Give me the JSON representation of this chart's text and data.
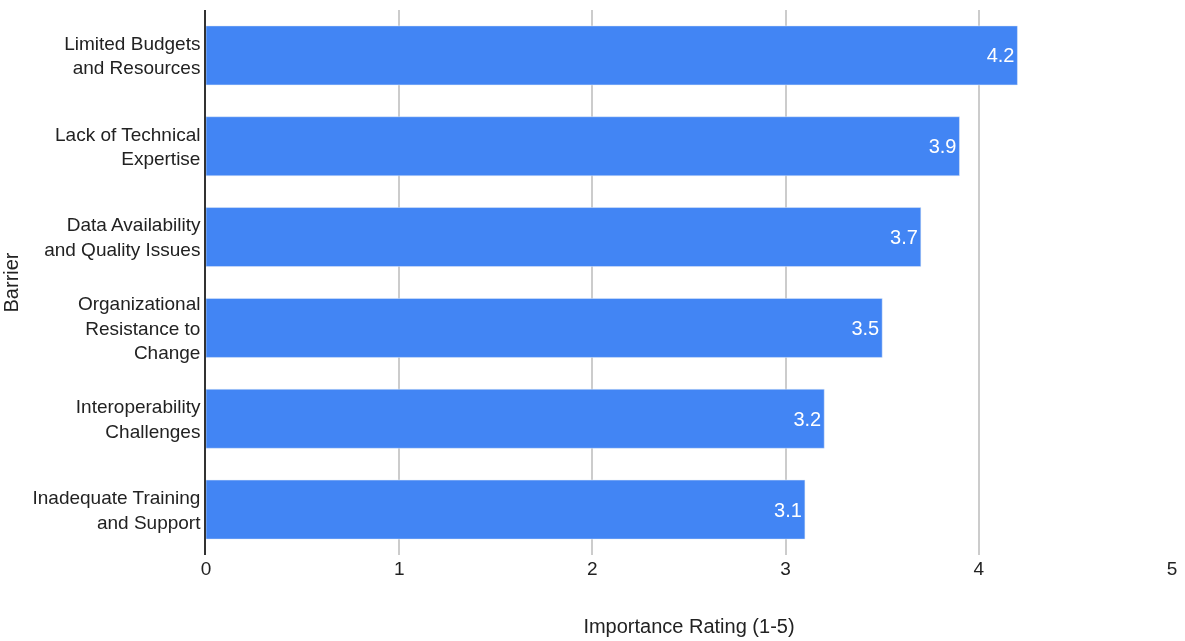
{
  "chart_data": {
    "type": "bar",
    "orientation": "horizontal",
    "xlabel": "Importance Rating (1-5)",
    "ylabel": "Barrier",
    "categories": [
      "Limited Budgets\nand Resources",
      "Lack of Technical\nExpertise",
      "Data Availability\nand Quality Issues",
      "Organizational\nResistance to\nChange",
      "Interoperability\nChallenges",
      "Inadequate Training\nand Support"
    ],
    "values": [
      4.2,
      3.9,
      3.7,
      3.5,
      3.2,
      3.1
    ],
    "color": "#4285f4",
    "xlim": [
      0,
      5
    ],
    "xticks": [
      0,
      1,
      2,
      3,
      4,
      5
    ],
    "grid": "x",
    "data_labels": true
  }
}
